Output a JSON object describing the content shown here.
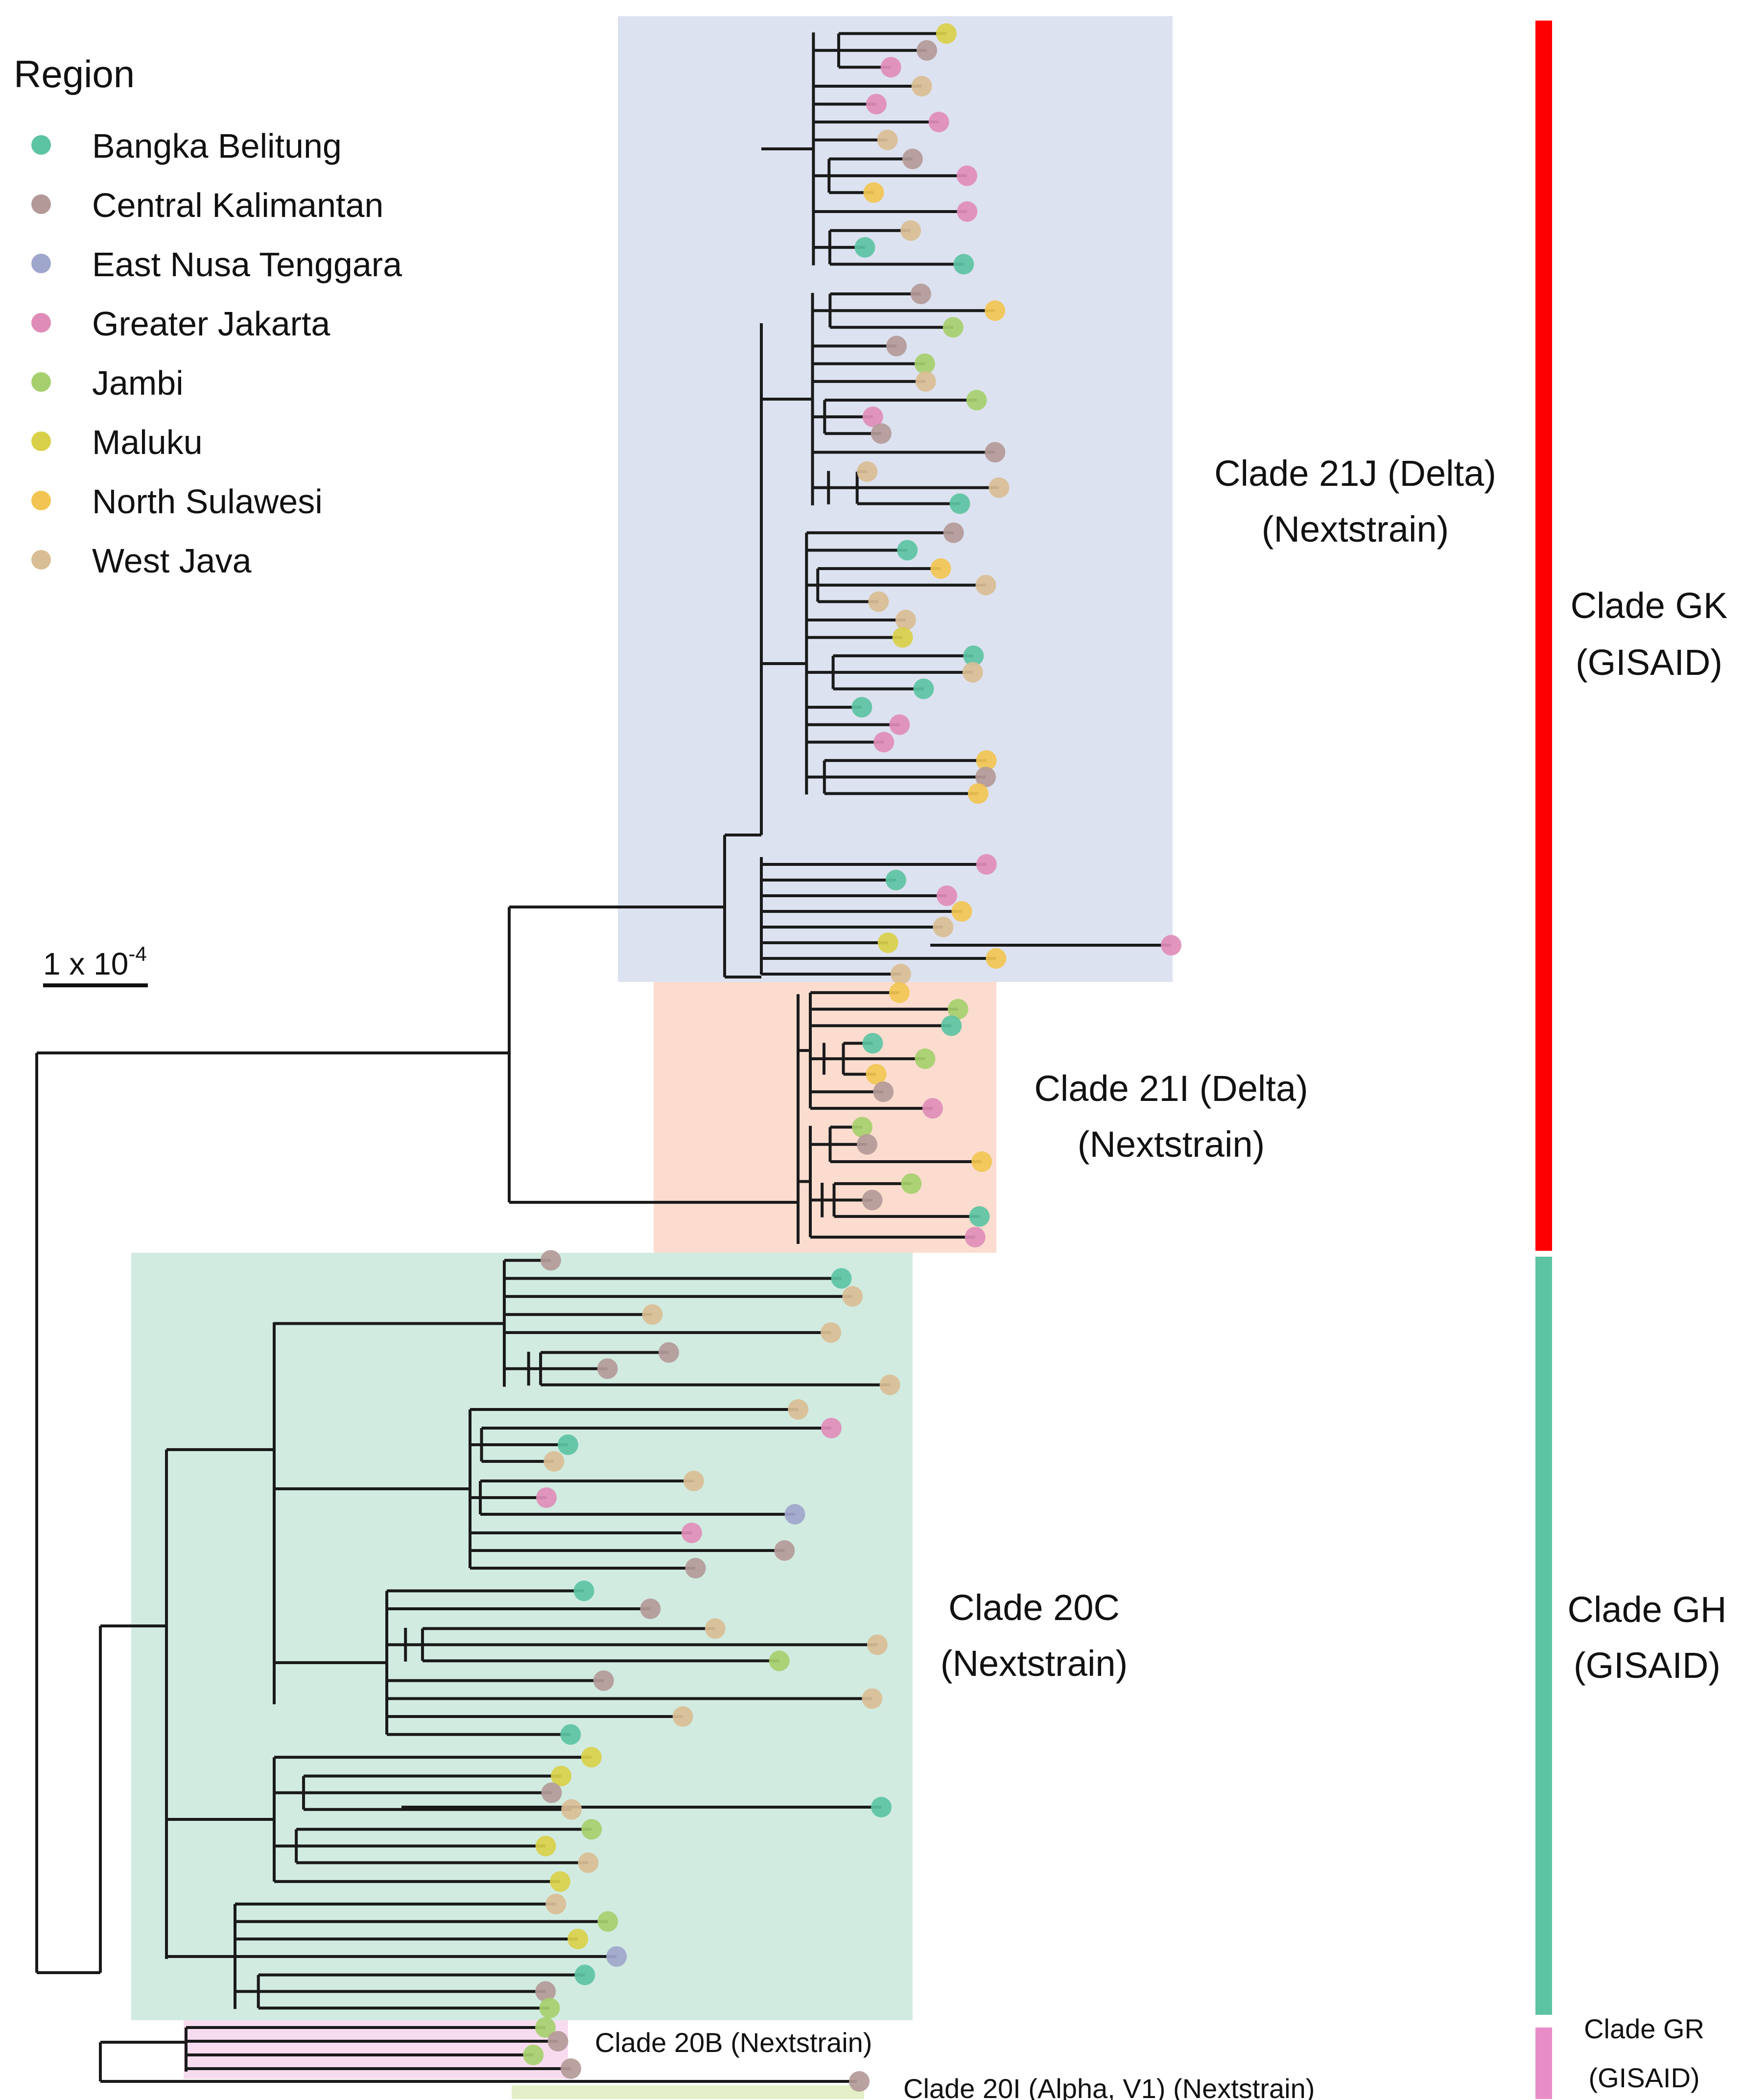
{
  "legend": {
    "title": "Region",
    "items": [
      {
        "label": "Bangka Belitung",
        "color": "#5cc3a3"
      },
      {
        "label": "Central Kalimantan",
        "color": "#b39a98"
      },
      {
        "label": "East Nusa Tenggara",
        "color": "#9fa6cc"
      },
      {
        "label": "Greater Jakarta",
        "color": "#df8db8"
      },
      {
        "label": "Jambi",
        "color": "#a6cf6e"
      },
      {
        "label": "Maluku",
        "color": "#d9d04a"
      },
      {
        "label": "North Sulawesi",
        "color": "#f2c553"
      },
      {
        "label": "West Java",
        "color": "#d9be95"
      }
    ]
  },
  "scale_bar": {
    "label": "1 x 10",
    "exponent": "-4"
  },
  "clades": {
    "c21j": {
      "line1": "Clade 21J (Delta)",
      "line2": "(Nextstrain)",
      "shade": "#dde2f0"
    },
    "c21i": {
      "line1": "Clade 21I (Delta)",
      "line2": "(Nextstrain)",
      "shade": "#fbdccf"
    },
    "c20c": {
      "line1": "Clade 20C",
      "line2": "(Nextstrain)",
      "shade": "#d1ebe1"
    },
    "c20b": {
      "line1": "Clade 20B (Nextstrain)",
      "shade": "#f7dcef"
    },
    "c20i": {
      "line1": "Clade 20I (Alpha, V1) (Nextstrain)",
      "shade": "#e4efc8"
    }
  },
  "gisaid": {
    "gk": {
      "line1": "Clade GK",
      "line2": "(GISAID)",
      "color": "#ff0000"
    },
    "gh": {
      "line1": "Clade GH",
      "line2": "(GISAID)",
      "color": "#5cc3a3"
    },
    "gr": {
      "line1": "Clade GR",
      "line2": "(GISAID)",
      "color": "#e98dc9"
    }
  },
  "branch_color": "#1a1a1a"
}
